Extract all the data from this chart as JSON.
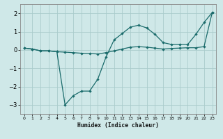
{
  "xlabel": "Humidex (Indice chaleur)",
  "bg_color": "#cfe8e8",
  "grid_color": "#aacccc",
  "line_color": "#1a6b6b",
  "xlim": [
    -0.5,
    23.5
  ],
  "ylim": [
    -3.5,
    2.5
  ],
  "yticks": [
    -3,
    -2,
    -1,
    0,
    1,
    2
  ],
  "xticks": [
    0,
    1,
    2,
    3,
    4,
    5,
    6,
    7,
    8,
    9,
    10,
    11,
    12,
    13,
    14,
    15,
    16,
    17,
    18,
    19,
    20,
    21,
    22,
    23
  ],
  "line1_x": [
    0,
    1,
    2,
    3,
    4,
    5,
    6,
    7,
    8,
    9,
    10,
    11,
    12,
    13,
    14,
    15,
    16,
    17,
    18,
    19,
    20,
    21,
    22,
    23
  ],
  "line1_y": [
    0.1,
    0.05,
    -0.05,
    -0.05,
    -0.1,
    -0.12,
    -0.15,
    -0.18,
    -0.2,
    -0.22,
    -0.15,
    -0.05,
    0.05,
    0.15,
    0.18,
    0.15,
    0.1,
    0.05,
    0.08,
    0.1,
    0.12,
    0.12,
    0.18,
    2.05
  ],
  "line2_x": [
    0,
    1,
    2,
    3,
    4,
    5,
    6,
    7,
    8,
    9,
    10,
    11,
    12,
    13,
    14,
    15,
    16,
    17,
    18,
    19,
    20,
    21,
    22,
    23
  ],
  "line2_y": [
    0.1,
    0.05,
    -0.05,
    -0.05,
    -0.1,
    -3.0,
    -2.5,
    -2.25,
    -2.25,
    -1.6,
    -0.4,
    0.55,
    0.9,
    1.25,
    1.35,
    1.2,
    0.85,
    0.4,
    0.3,
    0.3,
    0.3,
    0.85,
    1.5,
    2.05
  ]
}
